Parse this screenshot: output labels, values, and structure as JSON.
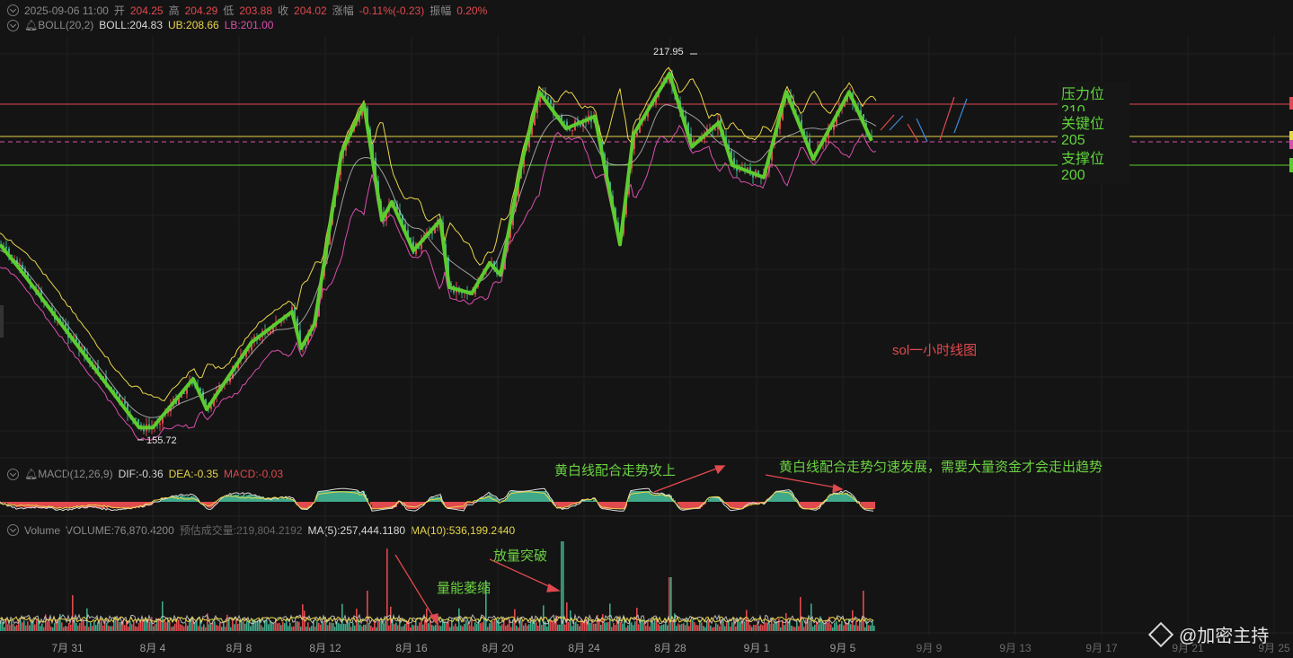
{
  "header": {
    "date": "2025-09-06 11:00",
    "open_label": "开",
    "open": "204.25",
    "high_label": "高",
    "high": "204.29",
    "low_label": "低",
    "low": "203.88",
    "close_label": "收",
    "close": "204.02",
    "change_label": "涨幅",
    "change": "-0.11%(-0.23)",
    "amp_label": "振幅",
    "amp": "0.20%"
  },
  "boll": {
    "name": "BOLL(20,2)",
    "boll": "BOLL:204.83",
    "ub": "UB:208.66",
    "lb": "LB:201.00"
  },
  "macd": {
    "name": "MACD(12,26,9)",
    "dif": "DIF:-0.36",
    "dea": "DEA:-0.35",
    "macd": "MACD:-0.03"
  },
  "volume": {
    "name": "Volume",
    "volume": "VOLUME:76,870.4200",
    "est": "预估成交量:219,804.2192",
    "ma5": "MA(5):257,444.1180",
    "ma10": "MA(10):536,199.2440"
  },
  "levels": {
    "resistance": "压力位210",
    "key": "关键位205",
    "support": "支撑位200"
  },
  "annotations": {
    "chart_title": "sol一小时线图",
    "macd_note_1": "黄白线配合走势攻上",
    "macd_note_2": "黄白线配合走势匀速发展，需要大量资金才会走出趋势",
    "vol_note_1": "放量突破",
    "vol_note_2": "量能萎缩"
  },
  "price_marks": {
    "high": "217.95",
    "low": "155.72"
  },
  "watermark": "@加密主持",
  "colors": {
    "up": "#e0494e",
    "down": "#3fa98a",
    "zigzag": "#5ccc2e",
    "ub": "#e8d54a",
    "lb": "#d84fae",
    "mid": "#cccccc"
  },
  "chart_data": {
    "type": "candlestick",
    "timeframe": "1h",
    "x_ticks": [
      "7月 31",
      "8月 4",
      "8月 8",
      "8月 12",
      "8月 16",
      "8月 20",
      "8月 24",
      "8月 28",
      "9月 1",
      "9月 5",
      "9月 9",
      "9月 13",
      "9月 17",
      "9月 21",
      "9月 25"
    ],
    "horizontal_levels": [
      210,
      205,
      200
    ],
    "swing_points": [
      [
        "7月 29",
        187
      ],
      [
        "7月 30",
        183
      ],
      [
        "8月 3",
        157
      ],
      [
        "8月 4",
        157
      ],
      [
        "8月 5",
        165
      ],
      [
        "8月 6",
        160
      ],
      [
        "8月 8",
        171
      ],
      [
        "8月 10",
        176
      ],
      [
        "8月 11",
        170
      ],
      [
        "8月 12",
        174
      ],
      [
        "8月 13",
        202
      ],
      [
        "8月 14",
        210
      ],
      [
        "8月 15",
        191
      ],
      [
        "8月 16",
        194
      ],
      [
        "8月 17",
        186
      ],
      [
        "8月 18",
        191
      ],
      [
        "8月 19",
        180
      ],
      [
        "8月 21",
        179
      ],
      [
        "8月 22",
        184
      ],
      [
        "8月 22 b",
        182
      ],
      [
        "8月 23",
        200
      ],
      [
        "8月 24",
        212
      ],
      [
        "8月 25",
        206
      ],
      [
        "8月 26",
        208
      ],
      [
        "8月 27",
        187
      ],
      [
        "8月 28",
        205
      ],
      [
        "8月 29",
        215
      ],
      [
        "8月 30",
        203
      ],
      [
        "8月 31",
        207
      ],
      [
        "9月 1",
        200
      ],
      [
        "9月 2",
        198
      ],
      [
        "9月 3",
        212
      ],
      [
        "9月 4",
        201
      ],
      [
        "9月 5",
        212
      ],
      [
        "9月 6",
        204
      ]
    ],
    "price_high": 217.95,
    "price_low": 155.72
  }
}
